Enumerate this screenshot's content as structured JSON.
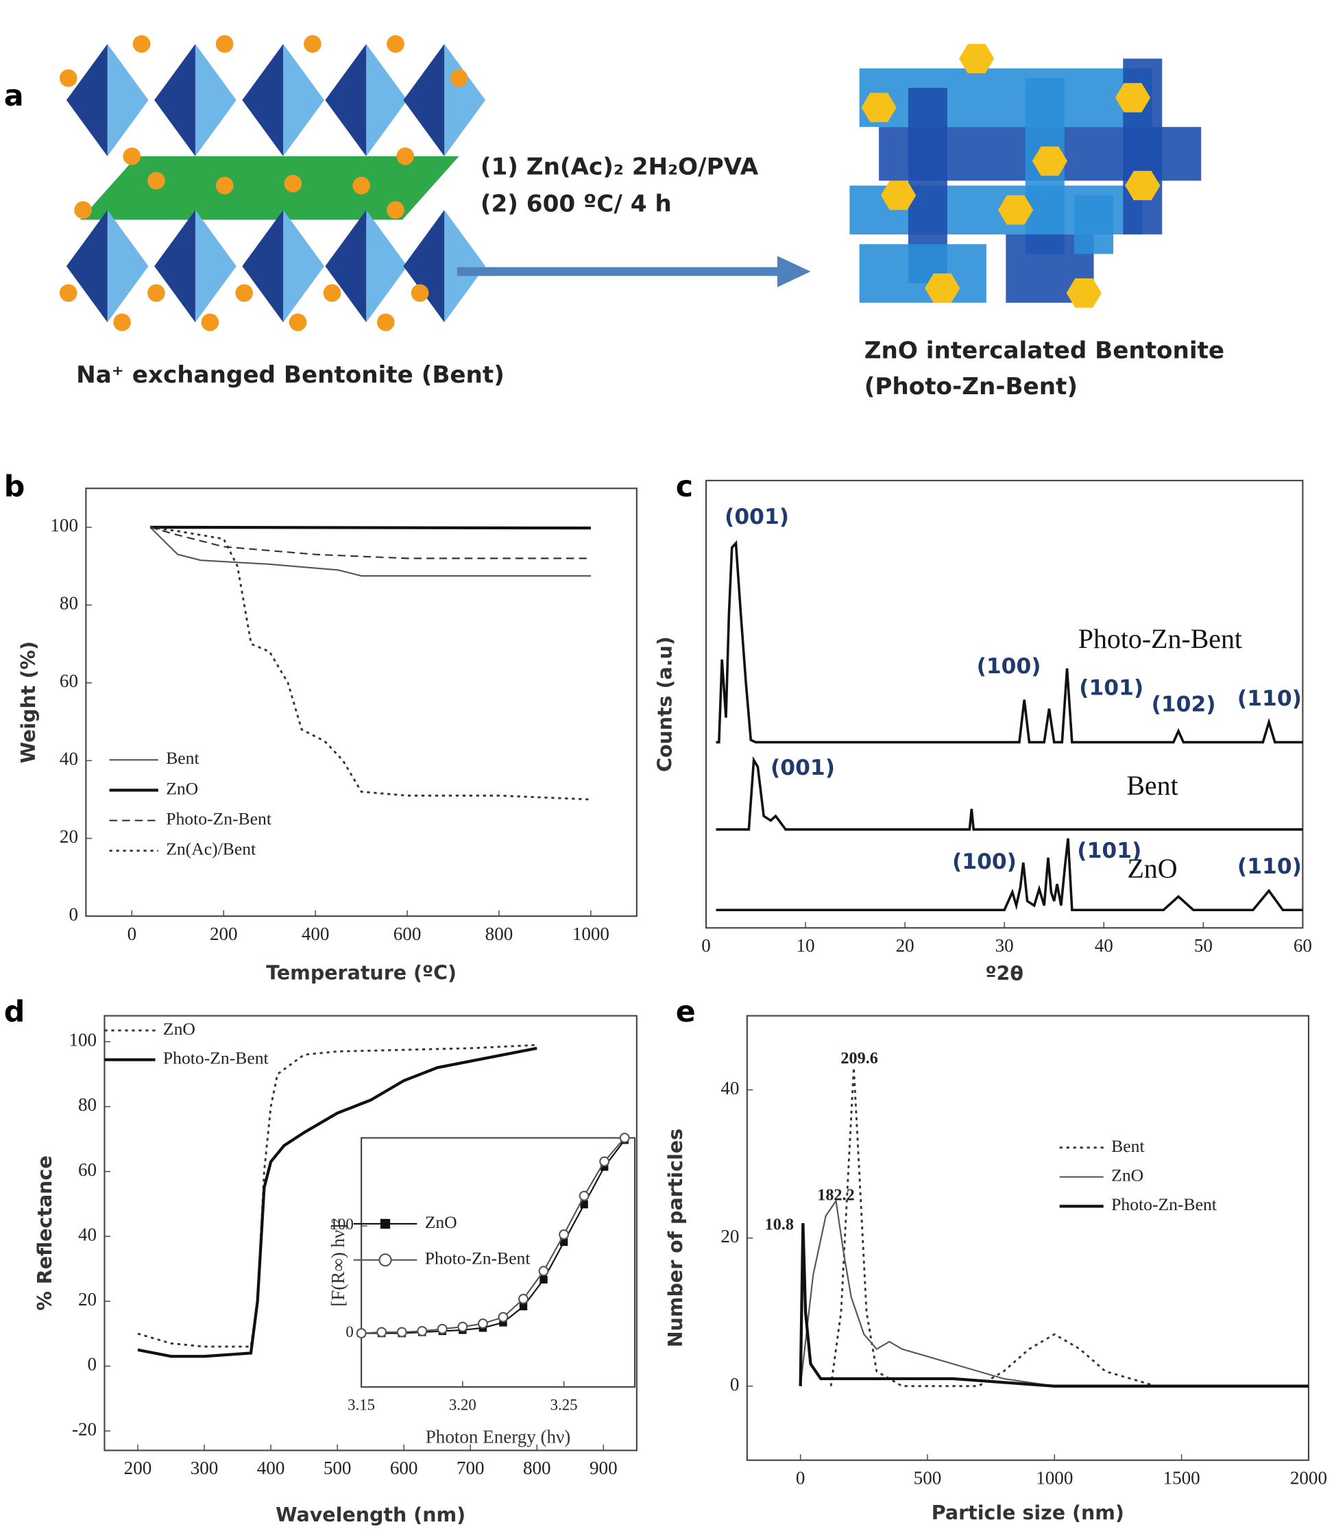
{
  "diagram": {
    "panel_labels": [
      "a",
      "b",
      "c",
      "d",
      "e"
    ],
    "step1": "(1)  Zn(Ac)₂ 2H₂O/PVA",
    "step2": "(2)  600 ºC/ 4 h",
    "left_caption": "Na⁺ exchanged Bentonite (Bent)",
    "right_caption_line1": "ZnO intercalated Bentonite",
    "right_caption_line2": "(Photo-Zn-Bent)"
  },
  "chart_data": [
    {
      "type": "line",
      "xlabel": "Temperature (ºC)",
      "ylabel": "Weight (%)",
      "xlim": [
        -100,
        1100
      ],
      "ylim": [
        0,
        110
      ],
      "xticks": [
        0,
        200,
        400,
        600,
        800,
        1000
      ],
      "yticks": [
        0,
        20,
        40,
        60,
        80,
        100
      ],
      "legend": "lower left",
      "series": [
        {
          "name": "Bent",
          "color": "#555555",
          "style": "solid",
          "linewidth": 1.5,
          "x": [
            40,
            100,
            150,
            300,
            450,
            500,
            1000
          ],
          "values": [
            100,
            93,
            91.5,
            90.5,
            89,
            87.5,
            87.5
          ]
        },
        {
          "name": "ZnO",
          "color": "#111111",
          "style": "solid",
          "linewidth": 3,
          "x": [
            40,
            1000
          ],
          "values": [
            100,
            99.8
          ]
        },
        {
          "name": "Photo-Zn-Bent",
          "color": "#333333",
          "style": "dashed",
          "linewidth": 1.5,
          "x": [
            40,
            100,
            200,
            400,
            500,
            600,
            1000
          ],
          "values": [
            100,
            98,
            95,
            93,
            92.5,
            92,
            92
          ]
        },
        {
          "name": "Zn(Ac)/Bent",
          "color": "#333333",
          "style": "dotted",
          "linewidth": 2,
          "x": [
            40,
            100,
            200,
            230,
            260,
            300,
            340,
            370,
            420,
            460,
            500,
            600,
            800,
            1000
          ],
          "values": [
            100,
            99,
            97,
            90,
            70,
            68,
            60,
            48,
            45,
            40,
            32,
            31,
            31,
            30
          ]
        }
      ]
    },
    {
      "type": "line",
      "xlabel": "º2θ",
      "ylabel": "Counts (a.u)",
      "xlim": [
        0,
        60
      ],
      "ylim": [
        0,
        100
      ],
      "xticks": [
        0,
        10,
        20,
        30,
        40,
        50,
        60
      ],
      "annotations": [
        "(001)",
        "(100)",
        "(101)",
        "(102)",
        "(110)",
        "(001)",
        "(100)",
        "(101)",
        "(110)"
      ],
      "series": [
        {
          "name": "Photo-Zn-Bent",
          "color": "#111111",
          "style": "solid",
          "linewidth": 2.5,
          "x": [
            1,
            1.3,
            1.6,
            2,
            2.3,
            2.6,
            3,
            3.5,
            4,
            4.5,
            5,
            10,
            20,
            30,
            31.5,
            32,
            32.5,
            34,
            34.5,
            35,
            35.8,
            36.3,
            36.8,
            40,
            47,
            47.5,
            48,
            56,
            56.6,
            57.2,
            60
          ],
          "values": [
            41.5,
            41.5,
            60,
            47,
            70,
            85,
            86,
            70,
            55,
            42,
            41.5,
            41.5,
            41.5,
            41.5,
            41.5,
            51,
            41.5,
            41.5,
            49,
            41.5,
            41.5,
            58,
            41.5,
            41.5,
            41.5,
            44,
            41.5,
            41.5,
            46,
            41.5,
            41.5
          ]
        },
        {
          "name": "Bent",
          "color": "#111111",
          "style": "solid",
          "linewidth": 2.5,
          "x": [
            1,
            4.3,
            4.8,
            5.2,
            5.8,
            6.5,
            7,
            8,
            20,
            26.5,
            26.7,
            26.9,
            60
          ],
          "values": [
            22,
            22,
            37.5,
            36,
            25,
            24,
            25,
            22,
            22,
            22,
            26.6,
            22,
            22
          ]
        },
        {
          "name": "ZnO",
          "color": "#111111",
          "style": "solid",
          "linewidth": 2.5,
          "x": [
            1,
            30,
            30.8,
            31.2,
            31.6,
            31.9,
            32.3,
            33,
            33.5,
            34,
            34.4,
            34.7,
            35,
            35.3,
            35.7,
            36.1,
            36.4,
            36.8,
            46,
            47.5,
            49,
            55,
            56.6,
            58,
            60
          ],
          "values": [
            4,
            4,
            8,
            5,
            9,
            14.6,
            6,
            5,
            8.7,
            5,
            15.7,
            8,
            6,
            9.8,
            5,
            14,
            20,
            4,
            4,
            7,
            4,
            4,
            8.3,
            4,
            4
          ]
        }
      ]
    },
    {
      "type": "line",
      "xlabel": "Wavelength (nm)",
      "ylabel": "% Reflectance",
      "xlim": [
        150,
        950
      ],
      "ylim": [
        -26,
        108
      ],
      "xticks": [
        200,
        300,
        400,
        500,
        600,
        700,
        800,
        900
      ],
      "yticks": [
        -20,
        0,
        20,
        40,
        60,
        80,
        100
      ],
      "legend": "upper left",
      "series": [
        {
          "name": "ZnO",
          "color": "#333333",
          "style": "dotted",
          "linewidth": 2,
          "x": [
            200,
            250,
            300,
            370,
            380,
            390,
            400,
            410,
            450,
            500,
            600,
            700,
            800
          ],
          "values": [
            10,
            7,
            6,
            6,
            20,
            60,
            80,
            90,
            96,
            97,
            97.5,
            98,
            99
          ]
        },
        {
          "name": "Photo-Zn-Bent",
          "color": "#111111",
          "style": "solid",
          "linewidth": 3,
          "x": [
            200,
            250,
            300,
            370,
            380,
            390,
            400,
            420,
            450,
            500,
            550,
            600,
            650,
            700,
            800
          ],
          "values": [
            5,
            3,
            3,
            4,
            20,
            55,
            63,
            68,
            72,
            78,
            82,
            88,
            92,
            94,
            98
          ]
        }
      ]
    },
    {
      "type": "scatter",
      "xlabel": "Photon Energy (hν)",
      "ylabel": "[F(R∞) hν]²",
      "xlim": [
        3.15,
        3.285
      ],
      "ylim": [
        -50,
        182
      ],
      "xticks": [
        3.15,
        {
          "value": 3.2,
          "label": "3.20"
        },
        3.25
      ],
      "yticks": [
        0,
        100
      ],
      "legend": "upper left",
      "x": [
        3.15,
        3.16,
        3.17,
        3.18,
        3.19,
        3.2,
        3.21,
        3.22,
        3.23,
        3.24,
        3.25,
        3.26,
        3.27,
        3.28
      ],
      "series": [
        {
          "name": "ZnO",
          "color": "#111111",
          "marker": "square",
          "values": [
            0,
            0,
            0,
            1,
            2,
            3,
            5,
            10,
            25,
            50,
            85,
            120,
            155,
            180
          ]
        },
        {
          "name": "Photo-Zn-Bent",
          "color": "#555555",
          "marker": "circle",
          "values": [
            0,
            1,
            1,
            2,
            4,
            6,
            9,
            15,
            32,
            58,
            92,
            128,
            160,
            182
          ]
        }
      ]
    },
    {
      "type": "line",
      "xlabel": "Particle size (nm)",
      "ylabel": "Number of particles",
      "xlim": [
        -210,
        2000
      ],
      "ylim": [
        -10,
        50
      ],
      "xticks": [
        0,
        500,
        1000,
        1500,
        2000
      ],
      "yticks": [
        0,
        20,
        40
      ],
      "legend": "upper right",
      "annotations": [
        "209.6",
        "182.2",
        "10.8"
      ],
      "series": [
        {
          "name": "Bent",
          "color": "#333333",
          "style": "dotted",
          "linewidth": 2,
          "x": [
            120,
            160,
            190,
            210,
            230,
            260,
            300,
            400,
            700,
            800,
            900,
            1000,
            1100,
            1200,
            1400,
            2000
          ],
          "values": [
            0,
            10,
            30,
            43,
            30,
            10,
            2,
            0,
            0,
            2,
            5,
            7,
            5,
            2,
            0,
            0
          ]
        },
        {
          "name": "ZnO",
          "color": "#555555",
          "style": "solid",
          "linewidth": 1.5,
          "x": [
            0,
            50,
            100,
            140,
            170,
            200,
            250,
            300,
            350,
            400,
            600,
            800,
            1000,
            2000
          ],
          "values": [
            0,
            15,
            23,
            25,
            18,
            12,
            7,
            5,
            6,
            5,
            3,
            1,
            0,
            0
          ]
        },
        {
          "name": "Photo-Zn-Bent",
          "color": "#111111",
          "style": "solid",
          "linewidth": 3,
          "x": [
            0,
            10,
            20,
            40,
            80,
            200,
            600,
            1000,
            2000
          ],
          "values": [
            0,
            22,
            10,
            3,
            1,
            1,
            1,
            0,
            0
          ]
        }
      ]
    }
  ]
}
